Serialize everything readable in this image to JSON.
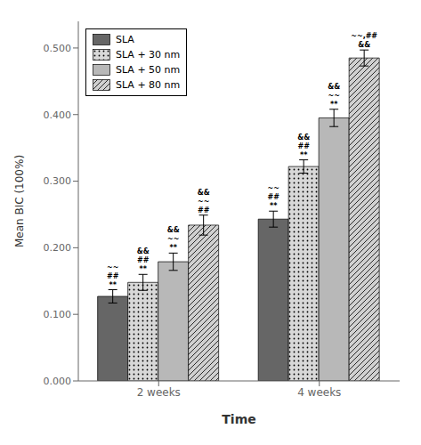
{
  "chart_data": {
    "type": "bar",
    "xlabel": "Time",
    "ylabel": "Mean BIC (100%)",
    "categories": [
      "2 weeks",
      "4 weeks"
    ],
    "series": [
      {
        "name": "SLA",
        "color": "#666666",
        "values": [
          0.127,
          0.243
        ],
        "errors": [
          0.01,
          0.012
        ]
      },
      {
        "name": "SLA + 30 nm",
        "color": "#d8d8d8",
        "values": [
          0.148,
          0.322
        ],
        "errors": [
          0.012,
          0.01
        ]
      },
      {
        "name": "SLA + 50 nm",
        "color": "#b8b8b8",
        "values": [
          0.179,
          0.395
        ],
        "errors": [
          0.013,
          0.013
        ]
      },
      {
        "name": "SLA + 80 nm",
        "color": "#d0d0d0",
        "values": [
          0.234,
          0.485
        ],
        "errors": [
          0.015,
          0.012
        ]
      }
    ],
    "ylim": [
      0.0,
      0.54
    ],
    "yticks": [
      {
        "value": 0.0,
        "label": "0.000"
      },
      {
        "value": 0.1,
        "label": "0.100"
      },
      {
        "value": 0.2,
        "label": "0.200"
      },
      {
        "value": 0.3,
        "label": "0.300"
      },
      {
        "value": 0.4,
        "label": "0.400"
      },
      {
        "value": 0.5,
        "label": "0.500"
      }
    ],
    "grid": false,
    "legend": "upper left",
    "annotations": [
      {
        "category": "2 weeks",
        "series": "SLA",
        "texts": [
          "**",
          "##",
          "~~"
        ]
      },
      {
        "category": "2 weeks",
        "series": "SLA + 30 nm",
        "texts": [
          "**",
          "##",
          "&&"
        ]
      },
      {
        "category": "2 weeks",
        "series": "SLA + 50 nm",
        "texts": [
          "**",
          "~~",
          "&&"
        ]
      },
      {
        "category": "2 weeks",
        "series": "SLA + 80 nm",
        "texts": [
          "##",
          "~~",
          "&&"
        ]
      },
      {
        "category": "4 weeks",
        "series": "SLA",
        "texts": [
          "**",
          "##",
          "~~"
        ]
      },
      {
        "category": "4 weeks",
        "series": "SLA + 30 nm",
        "texts": [
          "**",
          "##",
          "&&"
        ]
      },
      {
        "category": "4 weeks",
        "series": "SLA + 50 nm",
        "texts": [
          "**",
          "~~",
          "&&"
        ]
      },
      {
        "category": "4 weeks",
        "series": "SLA + 80 nm",
        "texts": [
          "&&",
          "~~,##"
        ]
      }
    ]
  }
}
